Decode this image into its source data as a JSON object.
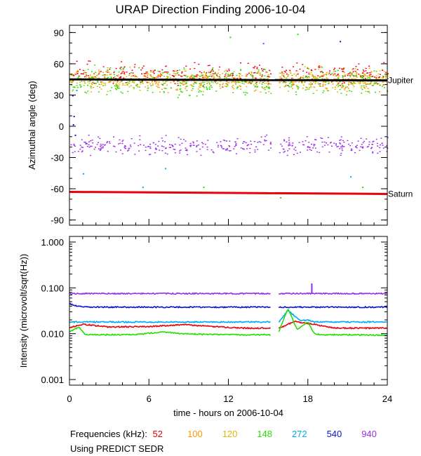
{
  "title": "URAP Direction Finding  2006-10-04",
  "footer": {
    "frequencies_label": "Frequencies (kHz):",
    "source": "Using PREDICT SEDR"
  },
  "frequencies": [
    {
      "label": "52",
      "color": "#e8000b"
    },
    {
      "label": "100",
      "color": "#ff9900"
    },
    {
      "label": "120",
      "color": "#e3b505"
    },
    {
      "label": "148",
      "color": "#22e000"
    },
    {
      "label": "272",
      "color": "#00aaee"
    },
    {
      "label": "540",
      "color": "#0a14d0"
    },
    {
      "label": "940",
      "color": "#9a2ee8"
    }
  ],
  "chart_data": [
    {
      "type": "scatter",
      "title": "URAP Direction Finding  2006-10-04",
      "xlabel": "time - hours on 2006-10-04",
      "ylabel": "Azimuthal angle (deg)",
      "xlim": [
        0,
        24
      ],
      "ylim": [
        -95,
        97
      ],
      "x_ticks": [
        0,
        6,
        12,
        18,
        24
      ],
      "y_ticks": [
        90,
        60,
        30,
        0,
        -30,
        -60,
        -90
      ],
      "data_gap_hours": [
        15.2,
        15.8
      ],
      "reference_lines": [
        {
          "name": "Jupiter",
          "color": "#000000",
          "points": [
            [
              0,
              45
            ],
            [
              24,
              44
            ]
          ]
        },
        {
          "name": "Saturn",
          "color": "#e8000b",
          "points": [
            [
              0,
              -63
            ],
            [
              24,
              -65
            ]
          ]
        }
      ],
      "series": [
        {
          "name": "52 kHz",
          "mean_deg": 50,
          "spread_deg": 5
        },
        {
          "name": "100 kHz",
          "mean_deg": 45,
          "spread_deg": 5
        },
        {
          "name": "120 kHz",
          "mean_deg": 44,
          "spread_deg": 5
        },
        {
          "name": "148 kHz",
          "mean_deg": 43,
          "spread_deg": 6
        },
        {
          "name": "940 kHz",
          "mean_deg": -18,
          "spread_deg": 4
        }
      ]
    },
    {
      "type": "line",
      "xlabel": "time - hours on 2006-10-04",
      "ylabel": "Intensity (microvolt/sqrt(Hz))",
      "yscale": "log",
      "xlim": [
        0,
        24
      ],
      "ylim": [
        0.001,
        1.0
      ],
      "x_ticks": [
        0,
        6,
        12,
        18,
        24
      ],
      "y_tick_labels": [
        "1.000",
        "0.100",
        "0.010",
        "0.001"
      ],
      "y_tick_values": [
        1.0,
        0.1,
        0.01,
        0.001
      ],
      "data_gap_hours": [
        15.2,
        15.8
      ],
      "series": [
        {
          "name": "940 kHz",
          "x": [
            0,
            15.2,
            15.8,
            24
          ],
          "y": [
            0.075,
            0.075,
            0.075,
            0.075
          ]
        },
        {
          "name": "540 kHz",
          "x": [
            0,
            0.3,
            1,
            15.2,
            15.8,
            18,
            24
          ],
          "y": [
            0.045,
            0.042,
            0.038,
            0.038,
            0.038,
            0.038,
            0.038
          ]
        },
        {
          "name": "272 kHz",
          "x": [
            0,
            6,
            12,
            15.2,
            15.8,
            16.5,
            17.5,
            18,
            18.5,
            20,
            24
          ],
          "y": [
            0.018,
            0.018,
            0.018,
            0.018,
            0.018,
            0.032,
            0.019,
            0.02,
            0.018,
            0.018,
            0.018
          ]
        },
        {
          "name": "52 kHz",
          "x": [
            0,
            1,
            3,
            6,
            8.6,
            11,
            13,
            15.2,
            15.8,
            17,
            18,
            20,
            24
          ],
          "y": [
            0.0135,
            0.016,
            0.014,
            0.0143,
            0.0158,
            0.0142,
            0.0133,
            0.0132,
            0.013,
            0.0185,
            0.0168,
            0.0133,
            0.0132
          ]
        },
        {
          "name": "148 kHz",
          "x": [
            0,
            0.7,
            1.2,
            2,
            5,
            7,
            9,
            12,
            15.2,
            15.8,
            16.5,
            17.2,
            18,
            18.5,
            19,
            21,
            24
          ],
          "y": [
            0.011,
            0.014,
            0.0095,
            0.0095,
            0.0095,
            0.011,
            0.0098,
            0.0095,
            0.0095,
            0.011,
            0.035,
            0.012,
            0.018,
            0.01,
            0.0095,
            0.0095,
            0.0092
          ]
        }
      ],
      "spike": {
        "name": "940 kHz",
        "x": 18.3,
        "peak": 0.125
      }
    }
  ]
}
